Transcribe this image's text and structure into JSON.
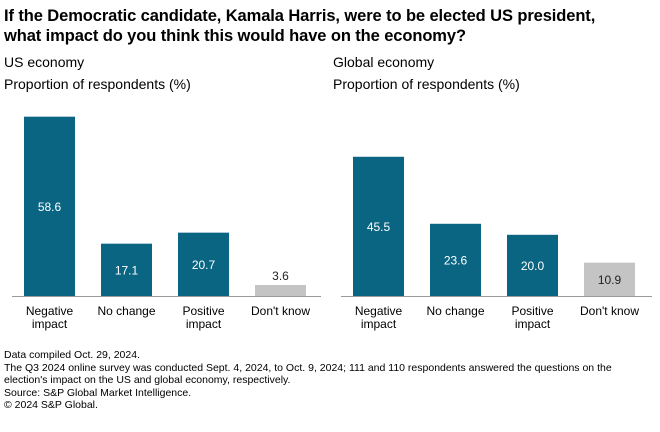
{
  "title_lines": [
    "If the Democratic candidate, Kamala Harris, were to be elected US president,",
    "what impact do you think this would have on the economy?"
  ],
  "chart_data": [
    {
      "type": "bar",
      "title": "US economy",
      "ylabel": "Proportion of respondents (%)",
      "categories": [
        [
          "Negative",
          "impact"
        ],
        [
          "No change"
        ],
        [
          "Positive",
          "impact"
        ],
        [
          "Don't know"
        ]
      ],
      "values": [
        58.6,
        17.1,
        20.7,
        3.6
      ],
      "labels": [
        "58.6",
        "17.1",
        "20.7",
        "3.6"
      ],
      "colors": [
        "#0a6582",
        "#0a6582",
        "#0a6582",
        "#c4c4c4"
      ],
      "ylim": [
        0,
        60
      ]
    },
    {
      "type": "bar",
      "title": "Global economy",
      "ylabel": "Proportion of respondents (%)",
      "categories": [
        [
          "Negative",
          "impact"
        ],
        [
          "No change"
        ],
        [
          "Positive",
          "impact"
        ],
        [
          "Don't know"
        ]
      ],
      "values": [
        45.5,
        23.6,
        20.0,
        10.9
      ],
      "labels": [
        "45.5",
        "23.6",
        "20.0",
        "10.9"
      ],
      "colors": [
        "#0a6582",
        "#0a6582",
        "#0a6582",
        "#c4c4c4"
      ],
      "ylim": [
        0,
        60
      ]
    }
  ],
  "footer": [
    "Data compiled Oct. 29, 2024.",
    "The Q3 2024 online survey was conducted Sept. 4, 2024, to Oct. 9, 2024; 111 and 110 respondents answered the questions on the election's impact on the US and global economy, respectively.",
    "Source: S&P Global Market Intelligence.",
    "© 2024 S&P Global."
  ]
}
